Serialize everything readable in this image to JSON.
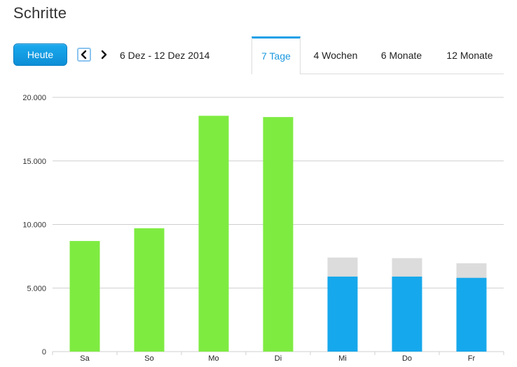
{
  "page": {
    "title": "Schritte"
  },
  "toolbar": {
    "today_label": "Heute",
    "date_range": "6 Dez - 12 Dez 2014"
  },
  "tabs": [
    {
      "label": "7 Tage",
      "active": true
    },
    {
      "label": "4 Wochen",
      "active": false
    },
    {
      "label": "6 Monate",
      "active": false
    },
    {
      "label": "12 Monate",
      "active": false
    }
  ],
  "colors": {
    "actual": "#7eeb41",
    "projected": "#16a8ec",
    "goal_remainder": "#dcdcdc",
    "accent": "#1aa0e6"
  },
  "chart_data": {
    "type": "bar",
    "categories": [
      "Sa",
      "So",
      "Mo",
      "Di",
      "Mi",
      "Do",
      "Fr"
    ],
    "series": [
      {
        "values": [
          8700,
          9700,
          18550,
          18450,
          0,
          0,
          0
        ]
      },
      {
        "values": [
          0,
          0,
          0,
          0,
          5900,
          5900,
          5800
        ]
      },
      {
        "values": [
          0,
          0,
          0,
          0,
          7400,
          7350,
          6950
        ]
      }
    ],
    "yticks": [
      "0",
      "5.000",
      "10.000",
      "15.000",
      "20.000"
    ],
    "ytick_values": [
      0,
      5000,
      10000,
      15000,
      20000
    ],
    "ylim": [
      0,
      20000
    ],
    "grid": true,
    "legend": "none"
  }
}
